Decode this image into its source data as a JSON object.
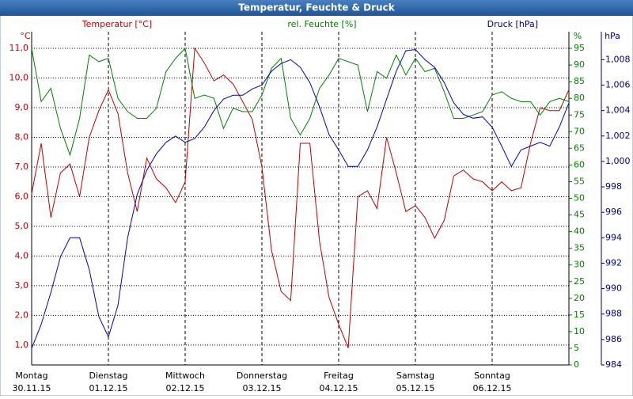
{
  "chart_data": {
    "type": "line",
    "title": "Temperatur, Feuchte & Druck",
    "y_label": "Temperatur [°C]",
    "y_unit": "°C",
    "y2_label": "rel. Feuchte [%]",
    "y2_unit": "%",
    "y3_label": "Druck [hPa]",
    "y3_unit": "hPa",
    "x": [
      0,
      3,
      6,
      9,
      12,
      15,
      18,
      21,
      24,
      27,
      30,
      33,
      36,
      39,
      42,
      45,
      48,
      51,
      54,
      57,
      60,
      63,
      66,
      69,
      72,
      75,
      78,
      81,
      84,
      87,
      90,
      93,
      96,
      99,
      102,
      105,
      108,
      111,
      114,
      117,
      120,
      123,
      126,
      129,
      132,
      135,
      138,
      141,
      144,
      147,
      150,
      153,
      156,
      159,
      162,
      165,
      168
    ],
    "xlim": [
      0,
      168
    ],
    "xticks": [
      {
        "value": 0,
        "label": "Montag",
        "date": "30.11.15"
      },
      {
        "value": 24,
        "label": "Dienstag",
        "date": "01.12.15"
      },
      {
        "value": 48,
        "label": "Mittwoch",
        "date": "02.12.15"
      },
      {
        "value": 72,
        "label": "Donnerstag",
        "date": "03.12.15"
      },
      {
        "value": 96,
        "label": "Freitag",
        "date": "04.12.15"
      },
      {
        "value": 120,
        "label": "Samstag",
        "date": "05.12.15"
      },
      {
        "value": 144,
        "label": "Sonntag",
        "date": "06.12.15"
      }
    ],
    "ylim": [
      0.33,
      11.56
    ],
    "yticks": [
      {
        "value": 1,
        "label": "1,0"
      },
      {
        "value": 2,
        "label": "2,0"
      },
      {
        "value": 3,
        "label": "3,0"
      },
      {
        "value": 4,
        "label": "4,0"
      },
      {
        "value": 5,
        "label": "5,0"
      },
      {
        "value": 6,
        "label": "6,0"
      },
      {
        "value": 7,
        "label": "7,0"
      },
      {
        "value": 8,
        "label": "8,0"
      },
      {
        "value": 9,
        "label": "9,0"
      },
      {
        "value": 10,
        "label": "10,0"
      },
      {
        "value": 11,
        "label": "11,0"
      }
    ],
    "y2lim": [
      0,
      100
    ],
    "y2ticks": [
      0,
      5,
      10,
      15,
      20,
      25,
      30,
      35,
      40,
      45,
      50,
      55,
      60,
      65,
      70,
      75,
      80,
      85,
      90,
      95
    ],
    "y3lim": [
      984,
      1010.2
    ],
    "y3ticks": [
      984,
      986,
      988,
      990,
      992,
      994,
      996,
      998,
      {
        "value": 1000,
        "label": "1,000"
      },
      {
        "value": 1002,
        "label": "1,002"
      },
      {
        "value": 1004,
        "label": "1,004"
      },
      {
        "value": 1006,
        "label": "1,006"
      },
      {
        "value": 1008,
        "label": "1,008"
      }
    ],
    "grid": true,
    "series": [
      {
        "name": "Temperatur",
        "color": "#c00000",
        "axis": "y",
        "values": [
          6.1,
          7.8,
          5.3,
          6.8,
          7.1,
          6.0,
          8.0,
          8.9,
          9.6,
          8.8,
          6.8,
          5.5,
          7.3,
          6.6,
          6.3,
          5.8,
          6.5,
          11.0,
          10.5,
          9.9,
          10.1,
          9.8,
          9.2,
          8.6,
          7.0,
          4.2,
          2.8,
          2.5,
          7.8,
          7.8,
          4.5,
          2.6,
          1.7,
          0.9,
          6.0,
          6.2,
          5.6,
          8.0,
          6.8,
          5.5,
          5.7,
          5.3,
          4.6,
          5.2,
          6.7,
          6.9,
          6.6,
          6.5,
          6.2,
          6.5,
          6.2,
          6.3,
          7.8,
          9.0,
          8.9,
          8.9,
          9.6
        ]
      },
      {
        "name": "rel. Feuchte",
        "color": "#008000",
        "axis": "y2",
        "values": [
          95,
          79,
          83,
          71,
          63,
          74,
          93,
          91,
          92,
          80,
          76,
          74,
          74,
          77,
          88,
          92,
          95,
          80,
          81,
          80,
          71,
          77,
          76,
          76,
          81,
          89,
          92,
          74,
          69,
          74,
          83,
          87,
          92,
          91,
          90,
          76,
          88,
          86,
          93,
          87,
          92,
          88,
          89,
          82,
          74,
          74,
          75,
          76,
          81,
          82,
          80,
          79,
          79,
          75,
          79,
          80,
          79
        ]
      },
      {
        "name": "Druck",
        "color": "#0000c0",
        "axis": "y3",
        "values": [
          985.3,
          987.2,
          989.7,
          992.5,
          994.0,
          994.0,
          991.5,
          987.8,
          986.2,
          988.7,
          994.0,
          997.4,
          999.3,
          1000.6,
          1001.5,
          1002.0,
          1001.5,
          1001.8,
          1002.7,
          1004.0,
          1004.9,
          1005.2,
          1005.2,
          1005.7,
          1006.0,
          1007.1,
          1007.7,
          1008.0,
          1007.4,
          1006.2,
          1004.3,
          1002.1,
          1000.9,
          999.6,
          999.6,
          1000.9,
          1002.7,
          1004.9,
          1007.1,
          1008.7,
          1008.8,
          1008.0,
          1007.4,
          1006.2,
          1004.6,
          1003.7,
          1003.4,
          1003.5,
          1002.7,
          1001.2,
          999.6,
          1000.9,
          1001.2,
          1001.5,
          1001.2,
          1002.7,
          1004.6
        ]
      }
    ]
  }
}
